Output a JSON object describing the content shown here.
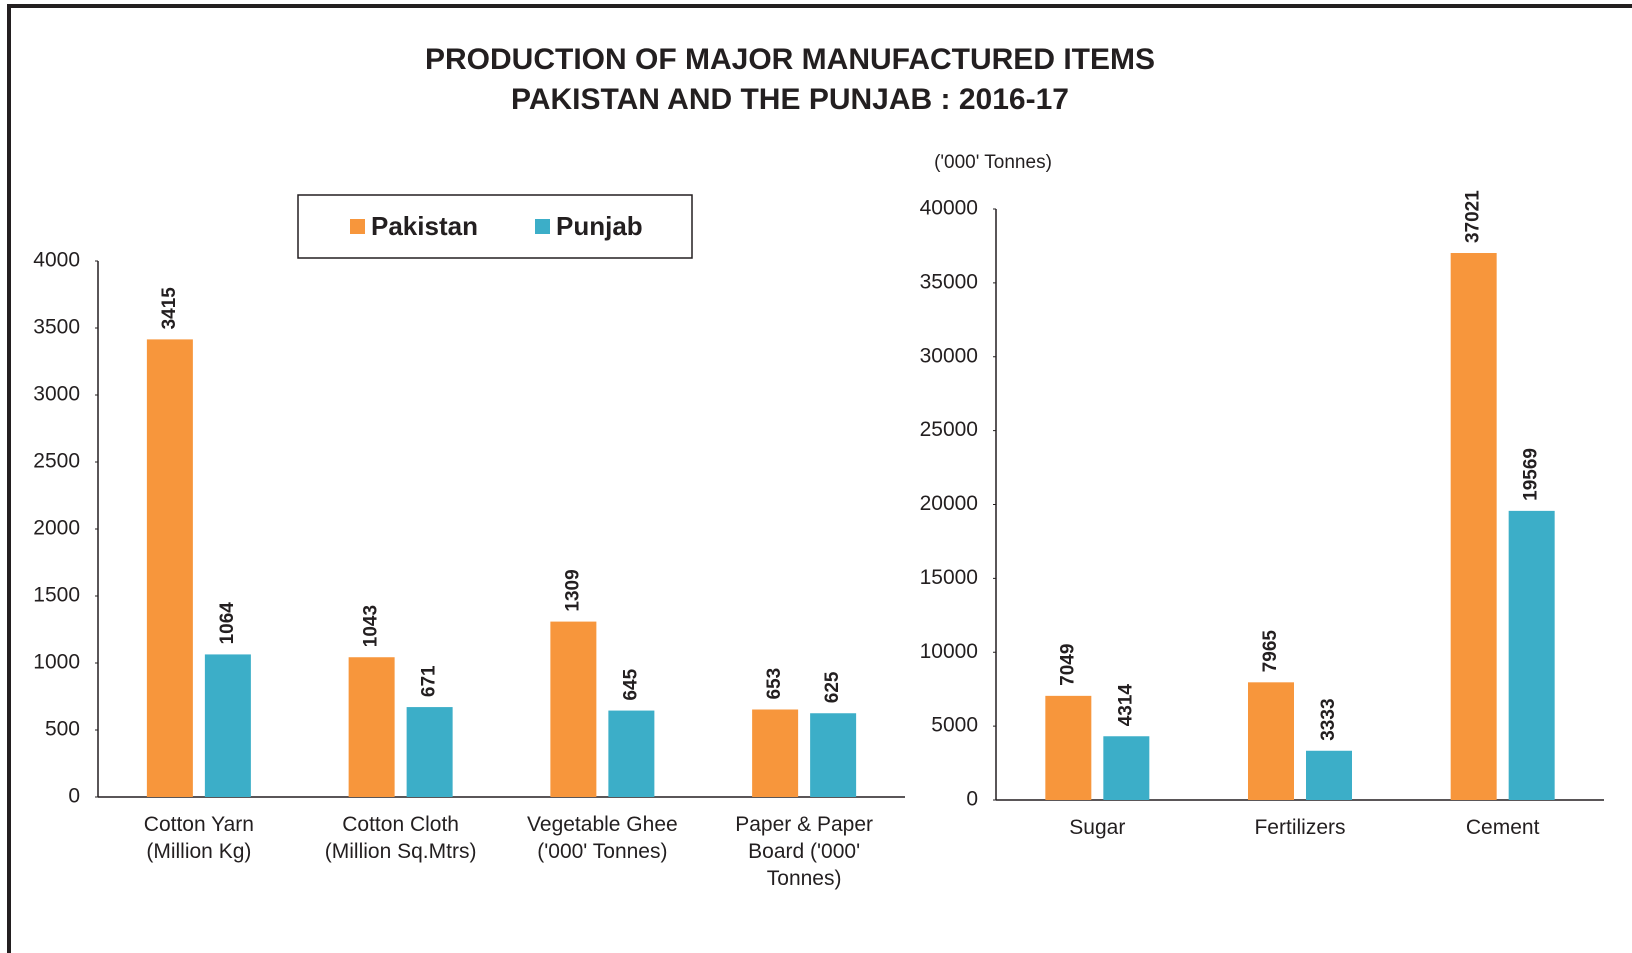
{
  "title": [
    "PRODUCTION OF MAJOR MANUFACTURED ITEMS",
    "PAKISTAN AND THE  PUNJAB : 2016-17"
  ],
  "legend": "top",
  "chart_data": [
    {
      "type": "bar",
      "categories": [
        "Cotton Yarn\n(Million Kg)",
        "Cotton Cloth\n(Million Sq.Mtrs)",
        "Vegetable Ghee\n('000' Tonnes)",
        "Paper & Paper\nBoard ('000'\nTonnes)"
      ],
      "series": [
        {
          "name": "Pakistan",
          "color": "#f7963c",
          "values": [
            3415,
            1043,
            1309,
            653
          ]
        },
        {
          "name": "Punjab",
          "color": "#3caec8",
          "values": [
            1064,
            671,
            645,
            625
          ]
        }
      ],
      "ylim": [
        0,
        4000
      ],
      "yticks": [
        0,
        500,
        1000,
        1500,
        2000,
        2500,
        3000,
        3500,
        4000
      ]
    },
    {
      "type": "bar",
      "ylabel": "('000' Tonnes)",
      "categories": [
        "Sugar",
        "Fertilizers",
        "Cement"
      ],
      "series": [
        {
          "color": "#f7963c",
          "values": [
            7049,
            7965,
            37021
          ]
        },
        {
          "color": "#3caec8",
          "values": [
            4314,
            3333,
            19569
          ]
        }
      ],
      "ylim": [
        0,
        40000
      ],
      "yticks": [
        0,
        5000,
        10000,
        15000,
        20000,
        25000,
        30000,
        35000,
        40000
      ]
    }
  ]
}
